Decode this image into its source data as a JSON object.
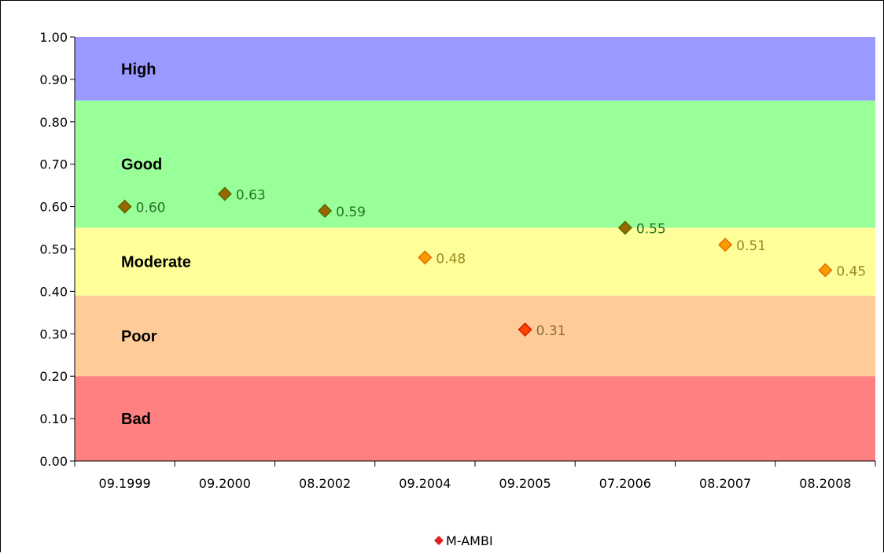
{
  "chart_data": {
    "type": "scatter",
    "title": "",
    "xlabel": "",
    "ylabel": "",
    "categories": [
      "09.1999",
      "09.2000",
      "08.2002",
      "09.2004",
      "09.2005",
      "07.2006",
      "08.2007",
      "08.2008"
    ],
    "series": [
      {
        "name": "M-AMBI",
        "values": [
          0.6,
          0.63,
          0.59,
          0.48,
          0.31,
          0.55,
          0.51,
          0.45
        ],
        "labels": [
          "0.60",
          "0.63",
          "0.59",
          "0.48",
          "0.31",
          "0.55",
          "0.51",
          "0.45"
        ],
        "marker": "diamond",
        "legend_color": "#e02020"
      }
    ],
    "ylim": [
      0,
      1
    ],
    "yticks": [
      "0.00",
      "0.10",
      "0.20",
      "0.30",
      "0.40",
      "0.50",
      "0.60",
      "0.70",
      "0.80",
      "0.90",
      "1.00"
    ],
    "bands": [
      {
        "label": "High",
        "from": 0.85,
        "to": 1.0,
        "color": "#9999ff"
      },
      {
        "label": "Good",
        "from": 0.55,
        "to": 0.85,
        "color": "#99ff99"
      },
      {
        "label": "Moderate",
        "from": 0.39,
        "to": 0.55,
        "color": "#ffff99"
      },
      {
        "label": "Poor",
        "from": 0.2,
        "to": 0.39,
        "color": "#ffcc99"
      },
      {
        "label": "Bad",
        "from": 0.0,
        "to": 0.2,
        "color": "#ff8080"
      }
    ],
    "marker_colors": {
      "Good": {
        "fill": "#996600",
        "stroke": "#556b00",
        "text": "#267326"
      },
      "Moderate": {
        "fill": "#ff9900",
        "stroke": "#e07000",
        "text": "#9a8a20"
      },
      "Poor": {
        "fill": "#ff4400",
        "stroke": "#cc2200",
        "text": "#8a6a30"
      }
    },
    "legend_position": "bottom",
    "grid": false
  }
}
